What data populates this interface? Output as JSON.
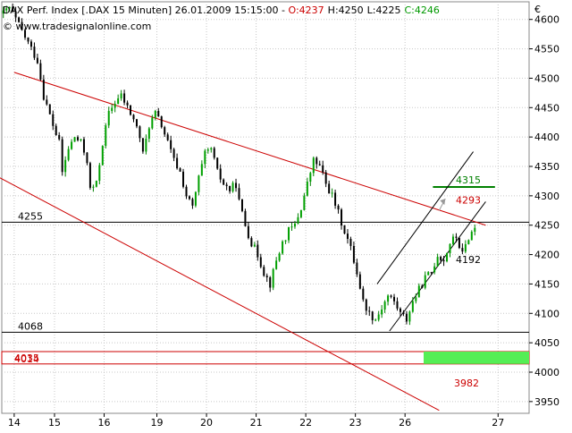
{
  "header": {
    "title": "DAX Perf. Index [.DAX  15 Minuten] 26.01.2009 15:15:00 - ",
    "open": "O:4237",
    "high": "H:4250",
    "low": "L:4225",
    "close": "C:4246",
    "watermark": "© www.tradesignalonline.com",
    "currency": "€"
  },
  "colors": {
    "up": "#008000",
    "down": "#000000",
    "channel": "#cc0000",
    "support_fill": "#55ee55",
    "ohlc_o": "#cc0000",
    "ohlc_h": "#000000",
    "ohlc_l": "#000000",
    "ohlc_c": "#009900"
  },
  "chart_data": {
    "type": "candlestick",
    "interval": "15 Minuten",
    "symbol": ".DAX",
    "ylim": [
      3930,
      4630
    ],
    "y_ticks": [
      3950,
      4000,
      4050,
      4100,
      4150,
      4200,
      4250,
      4300,
      4350,
      4400,
      4450,
      4500,
      4550,
      4600
    ],
    "x_labels": [
      "14",
      "15",
      "16",
      "19",
      "20",
      "21",
      "22",
      "23",
      "26",
      "27"
    ],
    "price_path": [
      [
        0,
        4610
      ],
      [
        2,
        4620
      ],
      [
        6,
        4580
      ],
      [
        8,
        4560
      ],
      [
        11,
        4530
      ],
      [
        13,
        4470
      ],
      [
        16,
        4420
      ],
      [
        18,
        4390
      ],
      [
        19,
        4340
      ],
      [
        21,
        4380
      ],
      [
        23,
        4400
      ],
      [
        25,
        4390
      ],
      [
        27,
        4360
      ],
      [
        28,
        4310
      ],
      [
        30,
        4320
      ],
      [
        32,
        4390
      ],
      [
        34,
        4440
      ],
      [
        36,
        4460
      ],
      [
        38,
        4470
      ],
      [
        40,
        4450
      ],
      [
        42,
        4430
      ],
      [
        44,
        4400
      ],
      [
        45,
        4370
      ],
      [
        47,
        4420
      ],
      [
        49,
        4440
      ],
      [
        51,
        4420
      ],
      [
        53,
        4390
      ],
      [
        55,
        4360
      ],
      [
        57,
        4340
      ],
      [
        59,
        4300
      ],
      [
        61,
        4280
      ],
      [
        63,
        4330
      ],
      [
        65,
        4370
      ],
      [
        67,
        4380
      ],
      [
        69,
        4340
      ],
      [
        71,
        4320
      ],
      [
        73,
        4310
      ],
      [
        75,
        4320
      ],
      [
        76,
        4290
      ],
      [
        78,
        4250
      ],
      [
        80,
        4220
      ],
      [
        82,
        4200
      ],
      [
        84,
        4170
      ],
      [
        86,
        4150
      ],
      [
        88,
        4190
      ],
      [
        90,
        4220
      ],
      [
        92,
        4240
      ],
      [
        94,
        4250
      ],
      [
        96,
        4280
      ],
      [
        98,
        4320
      ],
      [
        100,
        4360
      ],
      [
        102,
        4350
      ],
      [
        104,
        4320
      ],
      [
        106,
        4300
      ],
      [
        108,
        4270
      ],
      [
        110,
        4240
      ],
      [
        112,
        4210
      ],
      [
        114,
        4170
      ],
      [
        116,
        4120
      ],
      [
        118,
        4100
      ],
      [
        120,
        4090
      ],
      [
        122,
        4110
      ],
      [
        124,
        4130
      ],
      [
        126,
        4120
      ],
      [
        128,
        4100
      ],
      [
        130,
        4090
      ],
      [
        132,
        4120
      ],
      [
        134,
        4140
      ],
      [
        136,
        4160
      ],
      [
        138,
        4170
      ],
      [
        140,
        4200
      ],
      [
        142,
        4190
      ],
      [
        144,
        4220
      ],
      [
        146,
        4230
      ],
      [
        148,
        4200
      ],
      [
        150,
        4230
      ],
      [
        152,
        4246
      ]
    ],
    "annotations": [
      {
        "value": 4255,
        "label": "4255"
      },
      {
        "value": 4068,
        "label": "4068"
      },
      {
        "value": 4035,
        "label": "4035"
      },
      {
        "value": 4014,
        "label": "4014"
      },
      {
        "value": 3982,
        "label": "3982"
      },
      {
        "value": 4315,
        "label": "4315"
      },
      {
        "value": 4293,
        "label": "4293"
      },
      {
        "value": 4192,
        "label": "4192"
      }
    ],
    "lines": {
      "horizontal": [
        4255,
        4068
      ],
      "support_band": [
        4014,
        4035
      ],
      "target_level": 4315,
      "falling_channel": {
        "upper": {
          "from": [
            4,
            4510
          ],
          "to": [
            156,
            4250
          ]
        },
        "lower": {
          "from": [
            -4,
            4340
          ],
          "to": [
            141,
            3935
          ]
        }
      },
      "rising_channel": {
        "upper": {
          "from": [
            121,
            4150
          ],
          "to": [
            152,
            4375
          ]
        },
        "lower": {
          "from": [
            125,
            4070
          ],
          "to": [
            156,
            4290
          ]
        }
      }
    },
    "grid": true,
    "legend": "none"
  }
}
